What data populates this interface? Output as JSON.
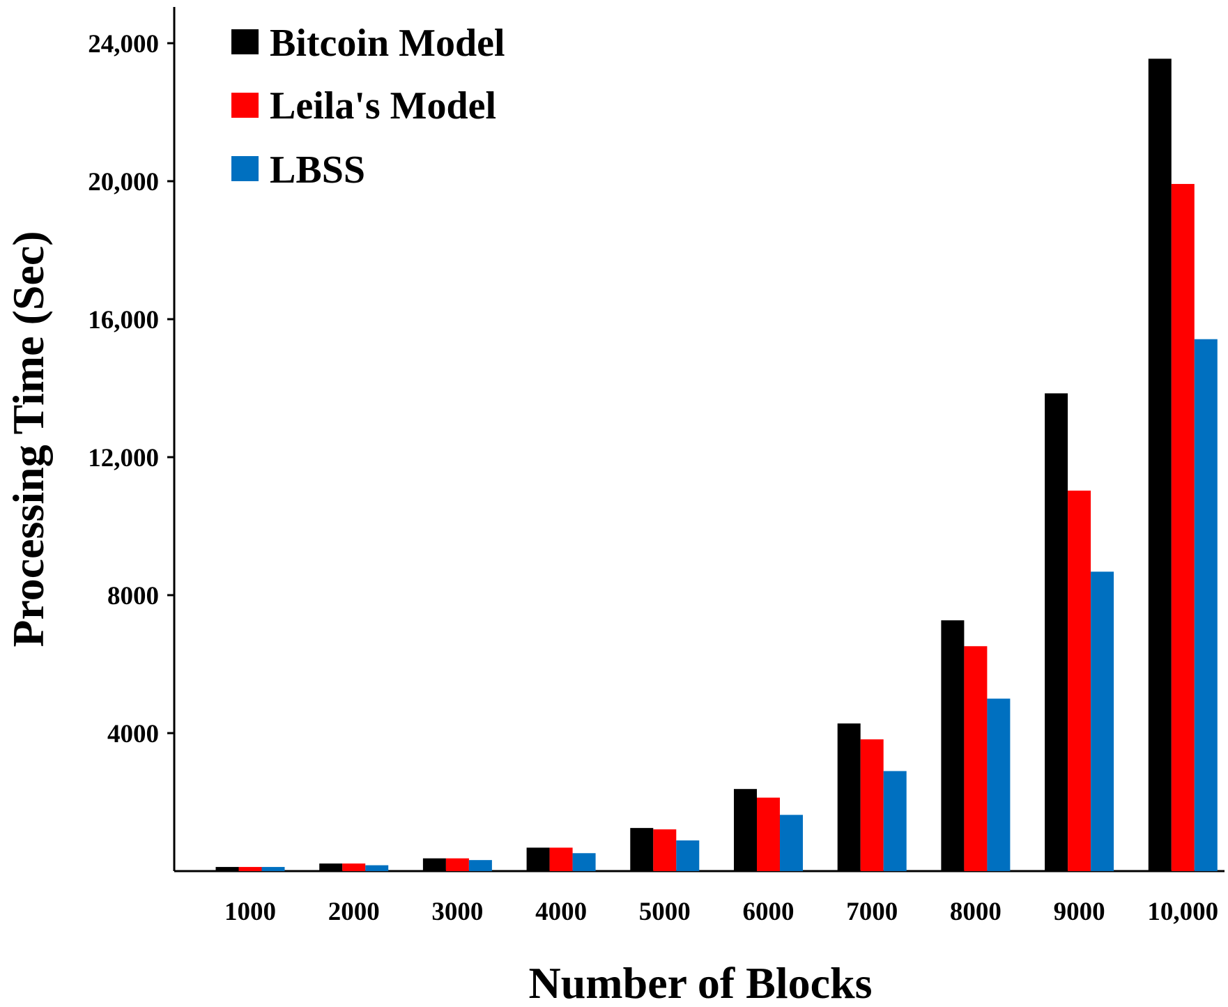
{
  "chart_data": {
    "type": "bar",
    "title": "",
    "xlabel": "Number of Blocks",
    "ylabel": "Processing Time (Sec)",
    "ylim": [
      0,
      25000
    ],
    "yticks": [
      {
        "value": 4000,
        "label": "4000"
      },
      {
        "value": 8000,
        "label": "8000"
      },
      {
        "value": 12000,
        "label": "12,000"
      },
      {
        "value": 16000,
        "label": "16,000"
      },
      {
        "value": 20000,
        "label": "20,000"
      },
      {
        "value": 24000,
        "label": "24,000"
      }
    ],
    "categories": [
      "1000",
      "2000",
      "3000",
      "4000",
      "5000",
      "6000",
      "7000",
      "8000",
      "9000",
      "10,000"
    ],
    "series": [
      {
        "name": "Bitcoin Model",
        "color": "#000000",
        "values": [
          120,
          220,
          370,
          680,
          1250,
          2380,
          4280,
          7270,
          13850,
          23550
        ]
      },
      {
        "name": "Leila's Model",
        "color": "#ff0000",
        "values": [
          120,
          220,
          370,
          680,
          1210,
          2130,
          3820,
          6520,
          11030,
          19920
        ]
      },
      {
        "name": "LBSS",
        "color": "#0070c0",
        "values": [
          120,
          170,
          320,
          520,
          890,
          1630,
          2900,
          5000,
          8680,
          15420
        ]
      }
    ],
    "grid": false,
    "legend_position": "top-left"
  }
}
